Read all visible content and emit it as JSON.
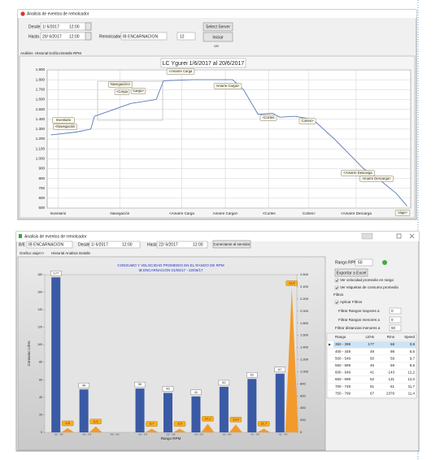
{
  "window_top": {
    "title": "Analisis de eventos de remolcador",
    "desde_label": "Desde",
    "desde_date": "1/ 6/2017",
    "desde_time": "12:00",
    "hasta_label": "Hasta",
    "hasta_date": "20/ 6/2017",
    "hasta_time": "12:00",
    "remolcador_label": "Remolcador",
    "remolcador": "IB ENCARNACION",
    "number": "12",
    "select_server": "Select Server",
    "iniciar": "Iniciar",
    "counter": "0/0",
    "tabs": [
      "Análisis",
      "Historial",
      "Gráfico",
      "Detalle",
      "RPM"
    ]
  },
  "window_bottom": {
    "title": "Analisis de eventos de remolcador",
    "be_label": "B/E",
    "be": "IB ENCARNACION",
    "desde_label": "Desde",
    "desde_date": "1/ 6/2017",
    "desde_time": "12:00",
    "hasta_label": "Hasta",
    "hasta_date": "22/ 6/2017",
    "hasta_time": "12:00",
    "connect": "Conectarse al servidor",
    "tabs": [
      "Grafico viaje>>",
      "Historial Analisis Detalle"
    ],
    "panel": {
      "rango_label": "Rango RPM",
      "rango": "50",
      "export": "Exportar a Excel",
      "check_speed": "Ver velocidad promedio en rango",
      "check_labels": "Ver etiquetas de consumo promedio",
      "filtros": "Filtros",
      "aplicar": "Aplicar Filtros",
      "mayores": "Filtrar Rangos mayores a",
      "mayores_value": "0",
      "menores": "Filtrar Rangos menores a",
      "menores_value": "0",
      "distancias": "Filtrar distancias menores a",
      "distancias_value": "50"
    },
    "table": {
      "columns": [
        "Rango",
        "Lt/Hs",
        "Rms",
        "Speed"
      ],
      "rows": [
        [
          "350 - 399",
          "177",
          "68",
          "0,8"
        ],
        [
          "400 - 449",
          "49",
          "98",
          "6,5"
        ],
        [
          "500 - 549",
          "50",
          "59",
          "9,7"
        ],
        [
          "550 - 599",
          "45",
          "59",
          "9,5"
        ],
        [
          "600 - 649",
          "41",
          "143",
          "12,2"
        ],
        [
          "650 - 699",
          "52",
          "131",
          "12,0"
        ],
        [
          "700 - 749",
          "61",
          "61",
          "11,7"
        ],
        [
          "750 - 799",
          "67",
          "2379",
          "11,4"
        ]
      ]
    }
  },
  "chart_data": [
    {
      "type": "line",
      "title": "LC Ygurei 1/6/2017 al 20/6/2017",
      "x": [
        1,
        8,
        12,
        13,
        23,
        30,
        32,
        40,
        51,
        54,
        58,
        62,
        64,
        68,
        73,
        79,
        83,
        87,
        91,
        96,
        99
      ],
      "series": [
        {
          "color": "#5a78b8",
          "values": [
            1240,
            1270,
            1300,
            1430,
            1560,
            1600,
            1790,
            1800,
            1800,
            1700,
            1450,
            1460,
            1420,
            1430,
            1400,
            1200,
            1050,
            900,
            800,
            650,
            520
          ]
        }
      ],
      "xlim": [
        0,
        100
      ],
      "xticks": [
        {
          "value": 3,
          "label": "Inventario"
        },
        {
          "value": 20,
          "label": "Navegación"
        },
        {
          "value": 37,
          "label": "<Amarre Carga"
        },
        {
          "value": 49,
          "label": "Amarre Carga>"
        },
        {
          "value": 61,
          "label": "<Cortes"
        },
        {
          "value": 72,
          "label": "Cortes>"
        },
        {
          "value": 85,
          "label": "<Amarre Descarga"
        }
      ],
      "ylim": [
        500,
        1900
      ],
      "yticks": [
        500,
        600,
        700,
        800,
        900,
        {
          "value": 1000,
          "label": "1.000"
        },
        {
          "value": 1100,
          "label": "1.100"
        },
        {
          "value": 1200,
          "label": "1.200"
        },
        {
          "value": 1300,
          "label": "1.300"
        },
        {
          "value": 1400,
          "label": "1.400"
        },
        {
          "value": 1500,
          "label": "1.500"
        },
        {
          "value": 1600,
          "label": "1.600"
        },
        {
          "value": 1700,
          "label": "1.700"
        },
        {
          "value": 1800,
          "label": "1.800"
        },
        {
          "value": 1900,
          "label": "1.900"
        }
      ],
      "grid": true,
      "annotations": [
        "Inventario",
        "<Navegación",
        "Navegación>",
        "<Carga",
        "Carga>",
        "<Amarre Carga",
        "Amarre Carga>",
        "<Cortes",
        "Cortes>",
        "<Amarre Descarga",
        "Amarre Descarga>",
        "Viaje>"
      ]
    },
    {
      "type": "bar",
      "title": "CONSUMO Y VELOCIDAD PROMEDIO EN EL RANGO DE RPM",
      "subtitle": "IB ENCARNACION 01/06/17 - 22/06/17",
      "x_label": "Rango RPM",
      "y_label": "Consumo Lt/Hs",
      "categories": [
        "350 - 399",
        "400 - 449",
        "450 - 499",
        "500 - 549",
        "550 - 599",
        "600 - 649",
        "650 - 699",
        "700 - 749",
        "750 - 799"
      ],
      "series": [
        {
          "color": "#3b5aa6",
          "values": [
            177,
            49,
            null,
            50,
            45,
            41,
            52,
            61,
            67
          ]
        },
        {
          "color": "#f39a2d",
          "axis": "y2",
          "values": [
            68,
            98,
            null,
            59,
            59,
            143,
            131,
            61,
            2379
          ]
        },
        {
          "color": "#f5b21e",
          "values": [
            0.8,
            6.5,
            null,
            9.7,
            9.5,
            12.2,
            12.0,
            11.7,
            11.4
          ],
          "value_labels": [
            "0,8",
            "6,5",
            null,
            "9,7",
            "9,5",
            "12,2",
            "12,0",
            "11,7",
            "11,4"
          ]
        }
      ],
      "ylim": [
        0,
        180
      ],
      "yticks": [
        0,
        20,
        40,
        60,
        80,
        100,
        120,
        140,
        160,
        180
      ],
      "y2lim": [
        0,
        2600
      ],
      "y2ticks": [
        0,
        200,
        400,
        600,
        800,
        {
          "value": 1000,
          "label": "1.000"
        },
        {
          "value": 1200,
          "label": "1.200"
        },
        {
          "value": 1400,
          "label": "1.400"
        },
        {
          "value": 1600,
          "label": "1.600"
        },
        {
          "value": 1800,
          "label": "1.800"
        },
        {
          "value": 2000,
          "label": "2.000"
        },
        {
          "value": 2200,
          "label": "2.200"
        },
        {
          "value": 2400,
          "label": "2.400"
        },
        {
          "value": 2600,
          "label": "2.600"
        }
      ]
    }
  ]
}
